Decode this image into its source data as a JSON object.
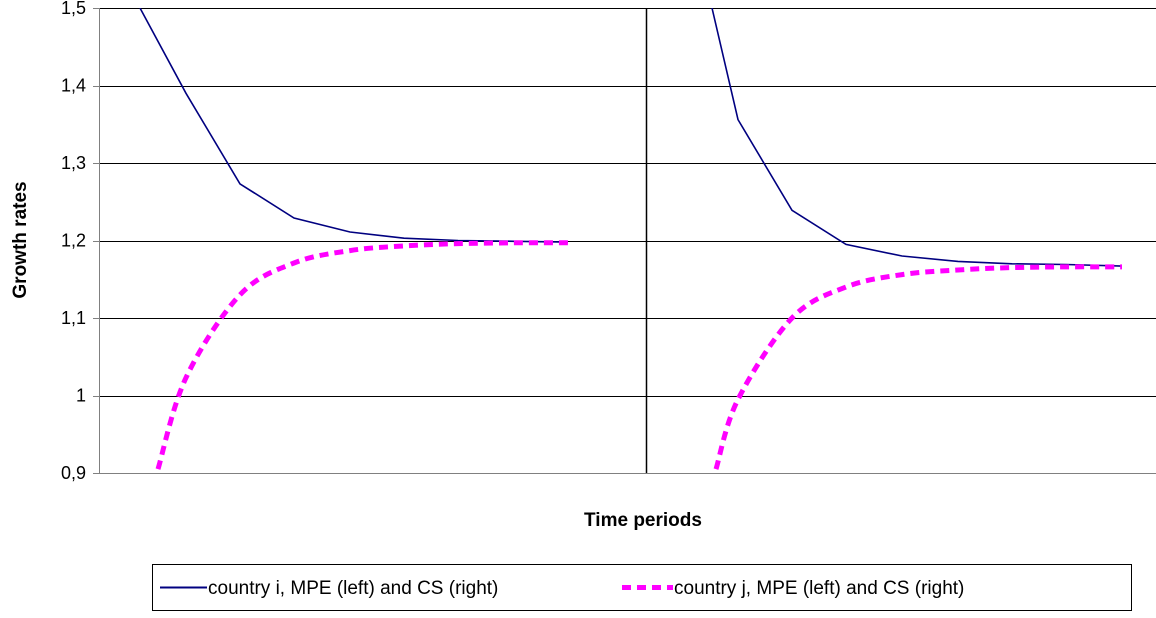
{
  "chart_data": {
    "type": "line",
    "xlabel": "Time periods",
    "ylabel": "Growth rates",
    "ylim": [
      0.9,
      1.5
    ],
    "yticks": [
      {
        "value": 0.9,
        "label": "0,9"
      },
      {
        "value": 1.0,
        "label": "1"
      },
      {
        "value": 1.1,
        "label": "1,1"
      },
      {
        "value": 1.2,
        "label": "1,2"
      },
      {
        "value": 1.3,
        "label": "1,3"
      },
      {
        "value": 1.4,
        "label": "1,4"
      },
      {
        "value": 1.5,
        "label": "1,5"
      }
    ],
    "grid": true,
    "panels": [
      "MPE (left)",
      "CS (right)"
    ],
    "x": [
      1,
      2,
      3,
      4,
      5,
      6,
      7,
      8,
      9
    ],
    "series": [
      {
        "name": "country i, MPE (left) and CS (right)",
        "color": "#000080",
        "style": "solid",
        "left": [
          1.5,
          1.39,
          1.273,
          1.229,
          1.211,
          1.203,
          1.2,
          1.199,
          1.198
        ],
        "right": [
          1.5,
          1.356,
          1.239,
          1.195,
          1.18,
          1.173,
          1.17,
          1.169,
          1.167
        ]
      },
      {
        "name": "country j, MPE (left) and CS (right)",
        "color": "#ff00ff",
        "style": "dashed",
        "left": [
          0.905,
          1.023,
          1.13,
          1.171,
          1.187,
          1.193,
          1.196,
          1.197,
          1.197
        ],
        "right": [
          0.905,
          0.995,
          1.1,
          1.14,
          1.156,
          1.162,
          1.165,
          1.166,
          1.166
        ]
      }
    ],
    "legend_position": "bottom"
  }
}
